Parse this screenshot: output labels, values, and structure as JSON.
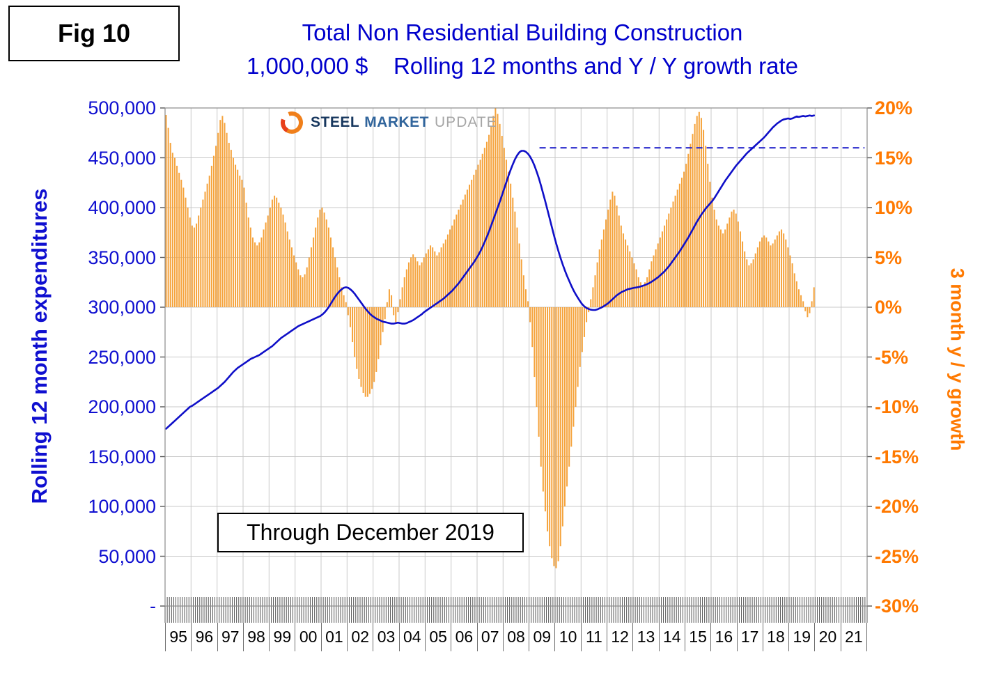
{
  "fig_label": "Fig 10",
  "title": {
    "line1": "Total Non Residential Building Construction",
    "line2": "1,000,000 $    Rolling 12 months and Y / Y growth rate"
  },
  "logo": {
    "steel": "STEEL",
    "market": "MARKET",
    "update": "UPDATE"
  },
  "annotation": "Through December 2019",
  "left_axis": {
    "label": "Rolling 12 month expenditures",
    "ticks": [
      "500,000",
      "450,000",
      "400,000",
      "350,000",
      "300,000",
      "250,000",
      "200,000",
      "150,000",
      "100,000",
      "50,000",
      "-"
    ]
  },
  "right_axis": {
    "label": "3 month y / y growth",
    "ticks": [
      "20%",
      "15%",
      "10%",
      "5%",
      "0%",
      "-5%",
      "-10%",
      "-15%",
      "-20%",
      "-25%",
      "-30%"
    ]
  },
  "x_axis": {
    "years": [
      "95",
      "96",
      "97",
      "98",
      "99",
      "00",
      "01",
      "02",
      "03",
      "04",
      "05",
      "06",
      "07",
      "08",
      "09",
      "10",
      "11",
      "12",
      "13",
      "14",
      "15",
      "16",
      "17",
      "18",
      "19",
      "20",
      "21"
    ]
  },
  "chart_data": {
    "type": "combo-bar-line",
    "title": "Total Non Residential Building Construction",
    "subtitle": "1,000,000 $ Rolling 12 months and Y / Y growth rate",
    "frequency": "monthly",
    "start_year": 1995,
    "data_through": "December 2019",
    "left_axis_title": "Rolling 12 month expenditures",
    "right_axis_title": "3 month y / y growth",
    "left_axis_range": [
      0,
      500000
    ],
    "right_axis_range_pct": [
      -30,
      20
    ],
    "gridlines": true,
    "baseline_pct": 0,
    "bar_series": {
      "name": "3 month y / y growth",
      "unit": "%",
      "axis": "right",
      "color": "#f5a33c",
      "values_by_year": [
        [
          19.3,
          18,
          16.5,
          15.5,
          15,
          14.2,
          13.5,
          12.8,
          12,
          11,
          10,
          9
        ],
        [
          8.2,
          8,
          8.4,
          9.2,
          10,
          10.8,
          11.6,
          12.4,
          13.2,
          14.2,
          15.2,
          16.2
        ],
        [
          17.5,
          18.8,
          19.2,
          18.5,
          17.5,
          16.5,
          15.8,
          15,
          14.3,
          13.8,
          13.2,
          12.8
        ],
        [
          12,
          10.5,
          9,
          8,
          7,
          6.5,
          6.2,
          6.5,
          7,
          7.8,
          8.5,
          9.2
        ],
        [
          10,
          10.8,
          11.2,
          11,
          10.5,
          10,
          9.3,
          8.5,
          7.6,
          6.8,
          6,
          5.2
        ],
        [
          4.5,
          3.8,
          3.2,
          3,
          3.3,
          4,
          5,
          6,
          7,
          8,
          9,
          9.8
        ],
        [
          10,
          9.5,
          8.8,
          8,
          7,
          6,
          5,
          4,
          3,
          2,
          1.2,
          0.5
        ],
        [
          -0.8,
          -2,
          -3.5,
          -5,
          -6.2,
          -7.2,
          -8,
          -8.6,
          -9,
          -9,
          -8.7,
          -8.2
        ],
        [
          -7.5,
          -6.5,
          -5.2,
          -3.8,
          -2.5,
          -1.2,
          0.5,
          1.8,
          1.2,
          -0.8,
          -1.5,
          -0.5
        ],
        [
          0.8,
          2,
          3,
          3.8,
          4.5,
          5,
          5.3,
          5,
          4.6,
          4.2,
          4.5,
          5
        ],
        [
          5.4,
          5.8,
          6.2,
          6,
          5.6,
          5.2,
          5.5,
          6,
          6.4,
          6.8,
          7.3,
          7.8
        ],
        [
          8.2,
          8.8,
          9.3,
          9.8,
          10.3,
          10.8,
          11.3,
          11.8,
          12.3,
          12.8,
          13.3,
          13.8
        ],
        [
          14.3,
          14.8,
          15.4,
          16,
          16.6,
          17.3,
          18.2,
          19.2,
          20,
          19.4,
          18.4,
          17.2
        ],
        [
          16,
          14.8,
          13.6,
          12.4,
          11,
          9.6,
          8,
          6.4,
          4.8,
          3.2,
          1.8,
          0.6
        ],
        [
          -1.5,
          -4,
          -7,
          -10,
          -13,
          -16,
          -18.5,
          -20.5,
          -22.5,
          -24,
          -25.2,
          -26
        ],
        [
          -26.2,
          -25.5,
          -24,
          -22,
          -20,
          -18,
          -16,
          -14,
          -12,
          -10,
          -8,
          -6
        ],
        [
          -4.5,
          -3,
          -1.5,
          -0.5,
          0.8,
          2,
          3.2,
          4.5,
          5.8,
          6.8,
          7.8,
          8.8
        ],
        [
          9.8,
          10.8,
          11.6,
          11.2,
          10.2,
          9.2,
          8.2,
          7.4,
          6.8,
          6.2,
          5.6,
          5
        ],
        [
          4.4,
          3.8,
          3,
          2.5,
          2.2,
          2.5,
          3,
          3.8,
          4.6,
          5.2,
          5.8,
          6.4
        ],
        [
          7,
          7.6,
          8.2,
          8.8,
          9.4,
          10,
          10.6,
          11.2,
          11.8,
          12.4,
          13,
          13.6
        ],
        [
          14.4,
          15.4,
          16.4,
          17.4,
          18.4,
          19.2,
          19.6,
          19,
          17.8,
          16.2,
          14.4,
          12.6
        ],
        [
          11,
          9.8,
          8.8,
          8.2,
          7.8,
          7.4,
          7.8,
          8.4,
          9,
          9.6,
          9.8,
          9.4
        ],
        [
          8.6,
          7.6,
          6.6,
          5.6,
          4.8,
          4.2,
          4.4,
          4.8,
          5.4,
          6,
          6.6,
          7
        ],
        [
          7.2,
          7,
          6.6,
          6.2,
          6.4,
          6.8,
          7.2,
          7.6,
          7.8,
          7.4,
          6.8,
          6
        ],
        [
          5.2,
          4.4,
          3.4,
          2.6,
          1.8,
          1.2,
          0.6,
          -0.4,
          -1,
          -0.6,
          0.6,
          2
        ]
      ]
    },
    "line_series": {
      "name": "Rolling 12 month expenditures",
      "unit": "1,000,000 $",
      "axis": "left",
      "color": "#0f0fc8",
      "values_by_year": [
        [
          178000,
          180000,
          182000,
          184000,
          186000,
          188000,
          190000,
          192000,
          194000,
          196000,
          198000,
          200000
        ],
        [
          201000,
          202500,
          204000,
          205500,
          207000,
          208500,
          210000,
          211500,
          213000,
          214500,
          216000,
          217500
        ],
        [
          219000,
          221000,
          223000,
          225000,
          227500,
          230000,
          232500,
          235000,
          237000,
          239000,
          240500,
          242000
        ],
        [
          243500,
          245000,
          246500,
          248000,
          249000,
          250000,
          251000,
          252000,
          253500,
          255000,
          256500,
          258000
        ],
        [
          259500,
          261000,
          263000,
          265000,
          267000,
          269000,
          270500,
          272000,
          273500,
          275000,
          276500,
          278000
        ],
        [
          279500,
          281000,
          282000,
          283000,
          284000,
          285000,
          286000,
          287000,
          288000,
          289000,
          290000,
          291000
        ],
        [
          292500,
          294500,
          297000,
          300000,
          303500,
          307000,
          310500,
          313500,
          316000,
          318000,
          319500,
          320000
        ],
        [
          319500,
          318000,
          316000,
          313500,
          310500,
          307500,
          304500,
          301500,
          298500,
          296000,
          293500,
          291500
        ],
        [
          290000,
          288500,
          287500,
          286500,
          285500,
          285000,
          284500,
          284000,
          283500,
          283500,
          284000,
          284500
        ],
        [
          284000,
          283500,
          283500,
          284000,
          285000,
          286000,
          287000,
          288500,
          290000,
          291500,
          293000,
          295000
        ],
        [
          296500,
          298000,
          299500,
          301000,
          302500,
          304000,
          305500,
          307000,
          308500,
          310500,
          312500,
          314500
        ],
        [
          316500,
          319000,
          321500,
          324000,
          327000,
          330000,
          333000,
          336000,
          339000,
          342000,
          345000,
          348500
        ],
        [
          352000,
          356000,
          360500,
          365500,
          370500,
          376000,
          382000,
          388000,
          394000,
          400000,
          406000,
          412500
        ],
        [
          419000,
          425500,
          432000,
          438000,
          443500,
          448500,
          452500,
          455500,
          457000,
          457000,
          456000,
          454000
        ],
        [
          451000,
          447000,
          442000,
          436000,
          429500,
          422000,
          414000,
          406000,
          397500,
          389000,
          380500,
          372000
        ],
        [
          364000,
          356500,
          349500,
          343000,
          337000,
          331500,
          326500,
          321500,
          317000,
          313000,
          309500,
          306000
        ],
        [
          303000,
          300800,
          299200,
          298200,
          297500,
          297200,
          297200,
          297800,
          298800,
          299800,
          301000,
          302500
        ],
        [
          304000,
          306000,
          308000,
          310000,
          312000,
          313500,
          315000,
          316000,
          317000,
          318000,
          318500,
          319000
        ],
        [
          319500,
          319800,
          320200,
          320800,
          321500,
          322200,
          323200,
          324200,
          325500,
          327000,
          328500,
          330000
        ],
        [
          332000,
          334000,
          336000,
          338500,
          341000,
          344000,
          347000,
          350000,
          353000,
          356000,
          359500,
          363000
        ],
        [
          366500,
          370000,
          374000,
          378000,
          382000,
          386000,
          389500,
          393000,
          396000,
          399000,
          401500,
          404000
        ],
        [
          406500,
          409500,
          413000,
          416500,
          420000,
          423500,
          427000,
          430000,
          433000,
          436000,
          439000,
          442000
        ],
        [
          444500,
          447000,
          449500,
          452000,
          454500,
          456500,
          458500,
          460500,
          462500,
          464500,
          466500,
          468500
        ],
        [
          470500,
          473000,
          475500,
          478000,
          480500,
          482500,
          484500,
          486000,
          487500,
          488500,
          489000,
          489500
        ],
        [
          489000,
          489500,
          490500,
          491500,
          491000,
          491500,
          492000,
          491500,
          492000,
          492500,
          492000,
          492500
        ]
      ]
    },
    "reference_line": {
      "style": "dashed",
      "color": "#2a2acc",
      "right_axis_value_pct": 16,
      "left_axis_equivalent": 460000,
      "from_year": 2009.4,
      "to_year": 2021.9
    }
  }
}
